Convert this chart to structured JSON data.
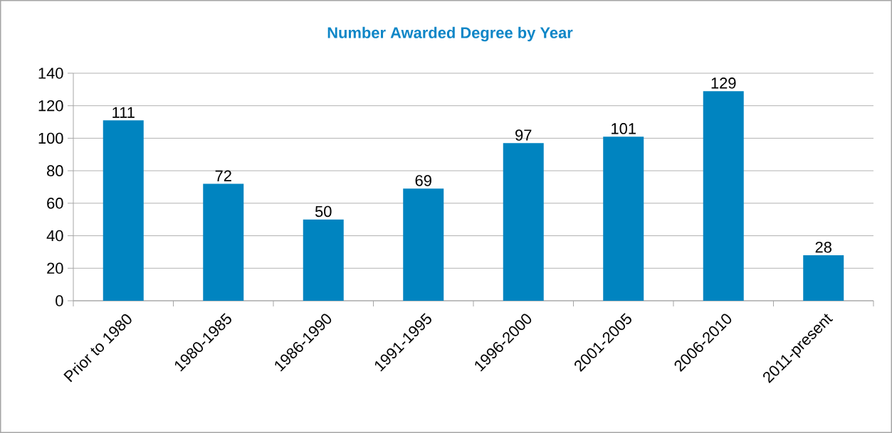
{
  "chart_data": {
    "type": "bar",
    "title": "Number Awarded Degree by Year",
    "categories": [
      "Prior to 1980",
      "1980-1985",
      "1986-1990",
      "1991-1995",
      "1996-2000",
      "2001-2005",
      "2006-2010",
      "2011-present"
    ],
    "values": [
      111,
      72,
      50,
      69,
      97,
      101,
      129,
      28
    ],
    "color": "#0084c0",
    "ylim": [
      0,
      140
    ],
    "yticks": [
      0,
      20,
      40,
      60,
      80,
      100,
      120,
      140
    ],
    "grid": "y",
    "data_labels": true
  }
}
